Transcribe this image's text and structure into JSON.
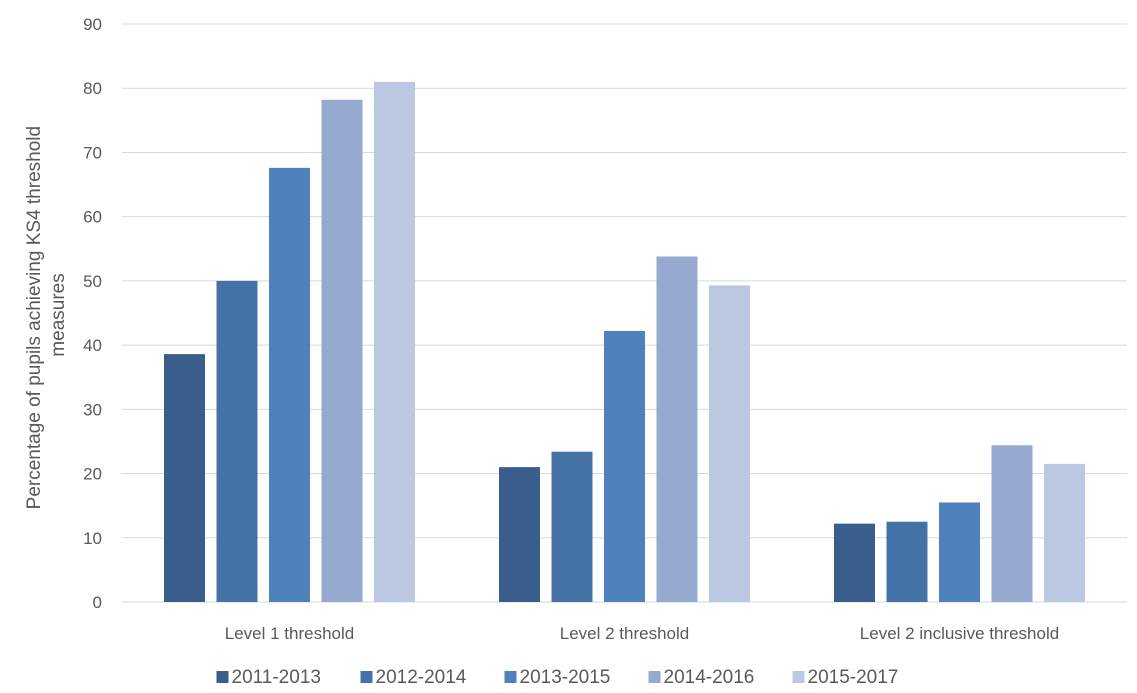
{
  "chart_data": {
    "type": "bar",
    "title": "",
    "xlabel": "",
    "ylabel_lines": [
      "Percentage of pupils achieving KS4 threshold",
      "measures"
    ],
    "ylim": [
      0,
      90
    ],
    "yticks": [
      0,
      10,
      20,
      30,
      40,
      50,
      60,
      70,
      80,
      90
    ],
    "grid": true,
    "legend_position": "bottom",
    "categories": [
      "Level 1 threshold",
      "Level 2 threshold",
      "Level 2 inclusive threshold"
    ],
    "series": [
      {
        "name": "2011-2013",
        "color": "#3a5e8c",
        "values": [
          38.6,
          21.0,
          12.2
        ]
      },
      {
        "name": "2012-2014",
        "color": "#4472a6",
        "values": [
          50.0,
          23.4,
          12.5
        ]
      },
      {
        "name": "2013-2015",
        "color": "#4f81bd",
        "values": [
          67.6,
          42.2,
          15.5
        ]
      },
      {
        "name": "2014-2016",
        "color": "#95a9d1",
        "values": [
          78.2,
          53.8,
          24.4
        ]
      },
      {
        "name": "2015-2017",
        "color": "#bcc8e2",
        "values": [
          81.0,
          49.3,
          21.5
        ]
      }
    ]
  }
}
